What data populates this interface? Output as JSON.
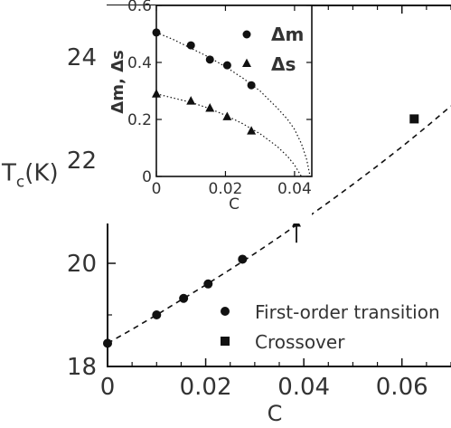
{
  "chart_data": [
    {
      "type": "scatter",
      "xlabel": "C",
      "ylabel_main": "T",
      "ylabel_sub": "c",
      "ylabel_unit": "(K)",
      "xlim": [
        0,
        0.07
      ],
      "ylim": [
        18,
        25
      ],
      "xticks": [
        "0",
        "0.02",
        "0.04",
        "0.06"
      ],
      "xtick_values": [
        0,
        0.02,
        0.04,
        0.06
      ],
      "yticks": [
        "18",
        "20",
        "22",
        "24"
      ],
      "ytick_values": [
        18,
        20,
        22,
        24
      ],
      "series": [
        {
          "name": "First-order transition",
          "marker": "circle",
          "x": [
            0,
            0.01,
            0.0155,
            0.0205,
            0.0275
          ],
          "y": [
            18.45,
            19.0,
            19.32,
            19.6,
            20.08
          ]
        },
        {
          "name": "Crossover",
          "marker": "square",
          "x": [
            0.04,
            0.0625
          ],
          "y": [
            21.2,
            22.8
          ]
        }
      ],
      "fit_curve": {
        "style": "dashed",
        "x": [
          0,
          0.005,
          0.01,
          0.015,
          0.02,
          0.025,
          0.03,
          0.035,
          0.04,
          0.045,
          0.05,
          0.055,
          0.06,
          0.065,
          0.07
        ],
        "y": [
          18.45,
          18.72,
          19.0,
          19.29,
          19.58,
          19.88,
          20.19,
          20.51,
          20.84,
          21.18,
          21.53,
          21.89,
          22.26,
          22.65,
          23.05
        ]
      },
      "annotation": {
        "type": "arrow",
        "x": 0.0385,
        "from_y": 20.4,
        "to_y": 20.85
      }
    },
    {
      "type": "scatter",
      "xlabel": "C",
      "ylabel": "Δm, Δs",
      "xlim": [
        0,
        0.045
      ],
      "ylim": [
        0,
        0.6
      ],
      "xticks": [
        "0",
        "0.02",
        "0.04"
      ],
      "xtick_values": [
        0,
        0.02,
        0.04
      ],
      "yticks": [
        "0",
        "0.2",
        "0.4",
        "0.6"
      ],
      "ytick_values": [
        0,
        0.2,
        0.4,
        0.6
      ],
      "series": [
        {
          "name": "Δm",
          "marker": "circle",
          "x": [
            0,
            0.01,
            0.0155,
            0.0205,
            0.0275
          ],
          "y": [
            0.505,
            0.46,
            0.41,
            0.39,
            0.32
          ]
        },
        {
          "name": "Δs",
          "marker": "triangle",
          "x": [
            0,
            0.01,
            0.0155,
            0.0205,
            0.0275
          ],
          "y": [
            0.29,
            0.265,
            0.24,
            0.21,
            0.16
          ]
        }
      ],
      "fit_curves": [
        {
          "style": "dotted",
          "x": [
            0,
            0.005,
            0.01,
            0.015,
            0.02,
            0.025,
            0.03,
            0.035,
            0.038,
            0.04,
            0.042,
            0.0435,
            0.0445
          ],
          "y": [
            0.505,
            0.48,
            0.45,
            0.42,
            0.385,
            0.345,
            0.3,
            0.24,
            0.2,
            0.165,
            0.115,
            0.06,
            0.0
          ]
        },
        {
          "style": "dotted",
          "x": [
            0,
            0.005,
            0.01,
            0.015,
            0.02,
            0.025,
            0.03,
            0.035,
            0.038,
            0.04,
            0.041,
            0.042
          ],
          "y": [
            0.29,
            0.275,
            0.26,
            0.24,
            0.215,
            0.185,
            0.15,
            0.105,
            0.07,
            0.04,
            0.02,
            0.0
          ]
        }
      ]
    }
  ]
}
